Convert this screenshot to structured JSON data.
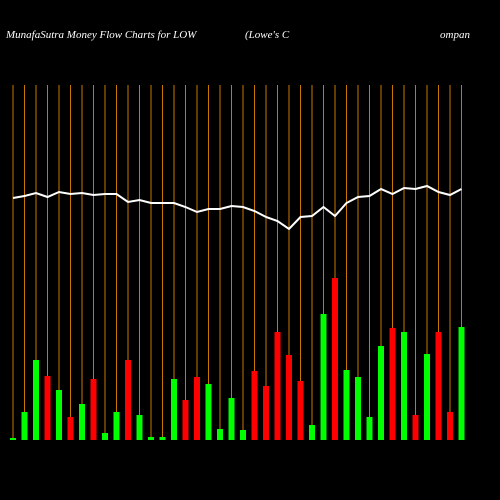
{
  "chart_data": {
    "type": "bar",
    "title_parts": [
      "MunafaSutra  Money Flow  Charts for LOW",
      "(Lowe's C",
      "ompan"
    ],
    "ylim": [
      0,
      355
    ],
    "bar_colors": {
      "up": "#00ff00",
      "down": "#ff0000"
    },
    "guide_color": "#c87800",
    "series": [
      {
        "name": "volume",
        "values": [
          2,
          28,
          80,
          64,
          50,
          23,
          36,
          61,
          7,
          28,
          80,
          25,
          3,
          3,
          61,
          40,
          63,
          56,
          11,
          42,
          10,
          69,
          54,
          108,
          85,
          59,
          15,
          126,
          162,
          70,
          63,
          23,
          94,
          112,
          108,
          25,
          86,
          108,
          28,
          113
        ],
        "directions": [
          "up",
          "up",
          "up",
          "down",
          "up",
          "down",
          "up",
          "down",
          "up",
          "up",
          "down",
          "up",
          "up",
          "up",
          "up",
          "down",
          "down",
          "up",
          "up",
          "up",
          "up",
          "down",
          "down",
          "down",
          "down",
          "down",
          "up",
          "up",
          "down",
          "up",
          "up",
          "up",
          "up",
          "down",
          "up",
          "down",
          "up",
          "down",
          "down",
          "up"
        ]
      },
      {
        "name": "money-flow",
        "color": "#ffffff",
        "values": [
          242,
          244,
          247,
          243,
          248,
          246,
          247,
          245,
          246,
          246,
          238,
          240,
          237,
          237,
          237,
          233,
          228,
          231,
          231,
          234,
          233,
          229,
          223,
          219,
          211,
          223,
          224,
          233,
          224,
          237,
          243,
          244,
          251,
          246,
          252,
          251,
          254,
          248,
          245,
          251
        ]
      }
    ]
  }
}
